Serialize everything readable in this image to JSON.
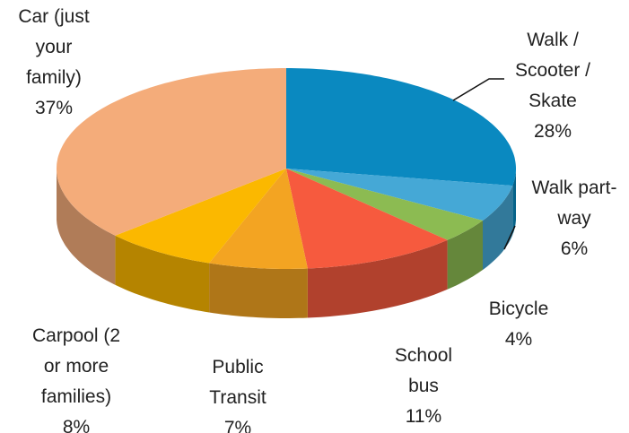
{
  "chart_data": {
    "type": "pie",
    "categories": [
      "Walk / Scooter / Skate",
      "Walk part-way",
      "Bicycle",
      "School bus",
      "Public Transit",
      "Carpool (2 or more families)",
      "Car (just your family)"
    ],
    "values": [
      28,
      6,
      4,
      11,
      7,
      8,
      37
    ],
    "value_labels": [
      "28%",
      "6%",
      "4%",
      "11%",
      "7%",
      "8%",
      "37%"
    ],
    "colors": [
      "#0a89c0",
      "#45a8d6",
      "#8cbb52",
      "#f65a3e",
      "#f3a422",
      "#fbb800",
      "#f4ac7a"
    ]
  }
}
